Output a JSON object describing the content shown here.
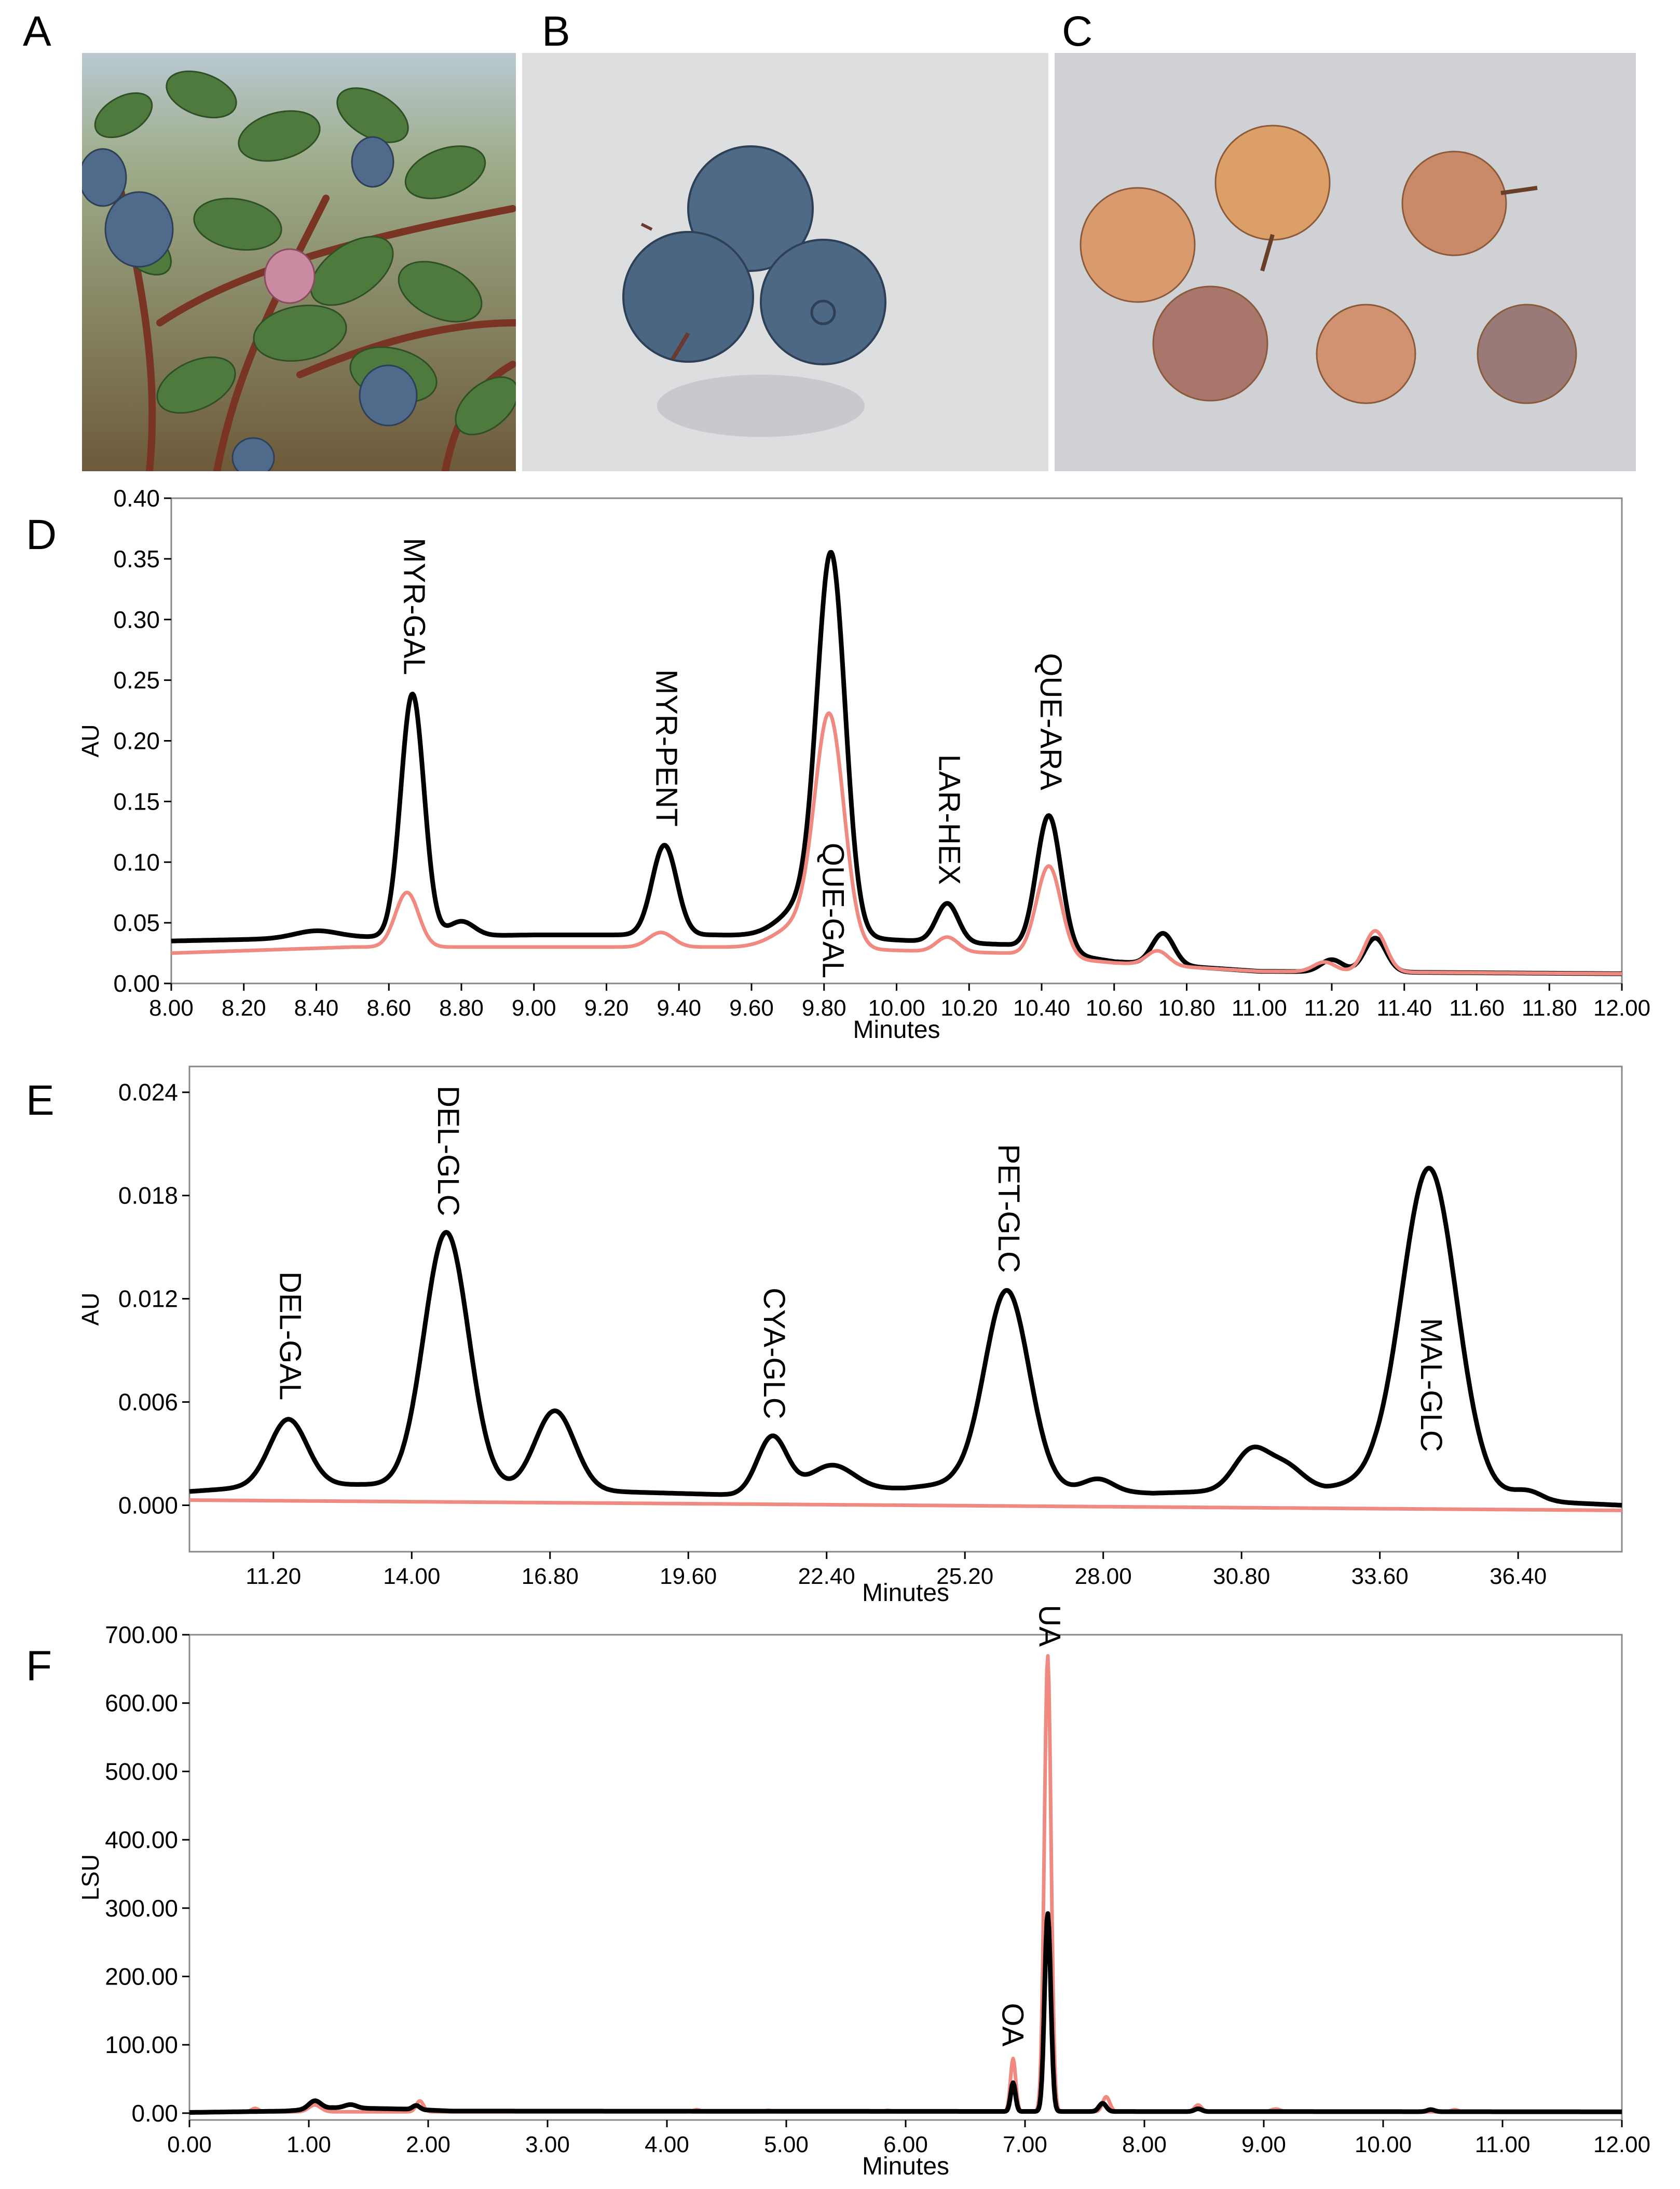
{
  "panels": {
    "a": {
      "letter": "A"
    },
    "b": {
      "letter": "B"
    },
    "c": {
      "letter": "C"
    },
    "d": {
      "letter": "D"
    },
    "e": {
      "letter": "E"
    },
    "f": {
      "letter": "F"
    }
  },
  "colors": {
    "black_trace": "#000000",
    "pink_trace": "#f08a80",
    "frame": "#888888",
    "leaf": "#4f7a3e",
    "berry_blue": "#4f6a8a",
    "berry_white": "#d99a6e"
  },
  "chart_data": [
    {
      "id": "D",
      "type": "line",
      "xlabel": "Minutes",
      "ylabel": "AU",
      "xlim": [
        8.0,
        12.0
      ],
      "ylim": [
        0.0,
        0.4
      ],
      "xticks": [
        "8.00",
        "8.20",
        "8.40",
        "8.60",
        "8.80",
        "9.00",
        "9.20",
        "9.40",
        "9.60",
        "9.80",
        "10.00",
        "10.20",
        "10.40",
        "10.60",
        "10.80",
        "11.00",
        "11.20",
        "11.40",
        "11.60",
        "11.80",
        "12.00"
      ],
      "xtick_values": [
        8.0,
        8.2,
        8.4,
        8.6,
        8.8,
        9.0,
        9.2,
        9.4,
        9.6,
        9.8,
        10.0,
        10.2,
        10.4,
        10.6,
        10.8,
        11.0,
        11.2,
        11.4,
        11.6,
        11.8,
        12.0
      ],
      "yticks": [
        "0.00",
        "0.05",
        "0.10",
        "0.15",
        "0.20",
        "0.25",
        "0.30",
        "0.35",
        "0.40"
      ],
      "ytick_values": [
        0.0,
        0.05,
        0.1,
        0.15,
        0.2,
        0.25,
        0.3,
        0.35,
        0.4
      ],
      "series": [
        {
          "name": "black",
          "color": "#000000",
          "baseline": [
            [
              8.0,
              0.035
            ],
            [
              8.5,
              0.038
            ],
            [
              9.0,
              0.04
            ],
            [
              9.5,
              0.04
            ],
            [
              9.9,
              0.037
            ],
            [
              10.3,
              0.032
            ],
            [
              10.6,
              0.018
            ],
            [
              11.0,
              0.01
            ],
            [
              12.0,
              0.008
            ]
          ],
          "peaks": [
            [
              8.4,
              0.006,
              0.06
            ],
            [
              8.665,
              0.2,
              0.032
            ],
            [
              8.8,
              0.012,
              0.035
            ],
            [
              9.36,
              0.074,
              0.034
            ],
            [
              9.82,
              0.297,
              0.038
            ],
            [
              9.76,
              0.03,
              0.07
            ],
            [
              10.14,
              0.032,
              0.03
            ],
            [
              10.42,
              0.112,
              0.034
            ],
            [
              10.735,
              0.026,
              0.03
            ],
            [
              11.2,
              0.01,
              0.03
            ],
            [
              11.32,
              0.028,
              0.03
            ]
          ]
        },
        {
          "name": "pink",
          "color": "#f08a80",
          "baseline": [
            [
              8.0,
              0.025
            ],
            [
              8.5,
              0.03
            ],
            [
              9.0,
              0.03
            ],
            [
              9.5,
              0.03
            ],
            [
              9.9,
              0.028
            ],
            [
              10.3,
              0.025
            ],
            [
              10.6,
              0.017
            ],
            [
              11.0,
              0.01
            ],
            [
              12.0,
              0.008
            ]
          ],
          "peaks": [
            [
              8.65,
              0.045,
              0.032
            ],
            [
              9.35,
              0.012,
              0.034
            ],
            [
              9.815,
              0.183,
              0.04
            ],
            [
              9.74,
              0.02,
              0.07
            ],
            [
              10.14,
              0.012,
              0.03
            ],
            [
              10.42,
              0.075,
              0.034
            ],
            [
              10.72,
              0.012,
              0.03
            ],
            [
              11.18,
              0.008,
              0.03
            ],
            [
              11.32,
              0.034,
              0.03
            ]
          ]
        }
      ],
      "annotations": [
        {
          "label": "MYR-GAL",
          "x": 8.665,
          "y": 0.25
        },
        {
          "label": "MYR-PENT",
          "x": 9.36,
          "y": 0.125
        },
        {
          "label": "QUE-GAL",
          "x": 9.82,
          "y": 0.0
        },
        {
          "label": "LAR-HEX",
          "x": 10.14,
          "y": 0.077
        },
        {
          "label": "QUE-ARA",
          "x": 10.42,
          "y": 0.155
        }
      ]
    },
    {
      "id": "E",
      "type": "line",
      "xlabel": "Minutes",
      "ylabel": "AU",
      "xlim": [
        9.5,
        38.5
      ],
      "ylim": [
        -0.0027,
        0.0255
      ],
      "xticks": [
        "11.20",
        "14.00",
        "16.80",
        "19.60",
        "22.40",
        "25.20",
        "28.00",
        "30.80",
        "33.60",
        "36.40"
      ],
      "xtick_values": [
        11.2,
        14.0,
        16.8,
        19.6,
        22.4,
        25.2,
        28.0,
        30.8,
        33.6,
        36.4
      ],
      "yticks": [
        "0.000",
        "0.006",
        "0.012",
        "0.018",
        "0.024"
      ],
      "ytick_values": [
        0.0,
        0.006,
        0.012,
        0.018,
        0.024
      ],
      "series": [
        {
          "name": "black",
          "color": "#000000",
          "baseline": [
            [
              9.5,
              0.0008
            ],
            [
              11.5,
              0.0012
            ],
            [
              13.0,
              0.0012
            ],
            [
              18.0,
              0.0008
            ],
            [
              20.5,
              0.0006
            ],
            [
              24.0,
              0.001
            ],
            [
              25.0,
              0.0013
            ],
            [
              26.5,
              0.001
            ],
            [
              29.0,
              0.0007
            ],
            [
              32.5,
              0.001
            ],
            [
              33.5,
              0.0015
            ],
            [
              37.0,
              0.0002
            ],
            [
              38.5,
              0.0
            ]
          ],
          "peaks": [
            [
              11.5,
              0.0038,
              0.38
            ],
            [
              14.7,
              0.0148,
              0.45
            ],
            [
              16.9,
              0.0046,
              0.4
            ],
            [
              21.3,
              0.0033,
              0.3
            ],
            [
              22.5,
              0.0015,
              0.45
            ],
            [
              26.05,
              0.0114,
              0.45
            ],
            [
              27.9,
              0.0007,
              0.3
            ],
            [
              31.0,
              0.0023,
              0.35
            ],
            [
              31.7,
              0.0013,
              0.35
            ],
            [
              34.6,
              0.0185,
              0.55
            ],
            [
              36.6,
              0.0005,
              0.3
            ]
          ]
        },
        {
          "name": "pink",
          "color": "#f08a80",
          "baseline": [
            [
              9.5,
              0.0003
            ],
            [
              38.5,
              -0.0003
            ]
          ],
          "peaks": []
        }
      ],
      "annotations": [
        {
          "label": "DEL-GAL",
          "x": 11.5,
          "y": 0.0058
        },
        {
          "label": "DEL-GLC",
          "x": 14.7,
          "y": 0.0165
        },
        {
          "label": "CYA-GLC",
          "x": 21.3,
          "y": 0.0047
        },
        {
          "label": "PET-GLC",
          "x": 26.05,
          "y": 0.0132
        },
        {
          "label": "MAL-GLC",
          "x": 34.6,
          "y": 0.0028
        }
      ]
    },
    {
      "id": "F",
      "type": "line",
      "xlabel": "Minutes",
      "ylabel": "LSU",
      "xlim": [
        0.0,
        12.0
      ],
      "ylim": [
        -10,
        700
      ],
      "xticks": [
        "0.00",
        "1.00",
        "2.00",
        "3.00",
        "4.00",
        "5.00",
        "6.00",
        "7.00",
        "8.00",
        "9.00",
        "10.00",
        "11.00",
        "12.00"
      ],
      "xtick_values": [
        0,
        1,
        2,
        3,
        4,
        5,
        6,
        7,
        8,
        9,
        10,
        11,
        12
      ],
      "yticks": [
        "0.00",
        "100.00",
        "200.00",
        "300.00",
        "400.00",
        "500.00",
        "600.00",
        "700.00"
      ],
      "ytick_values": [
        0,
        100,
        200,
        300,
        400,
        500,
        600,
        700
      ],
      "series": [
        {
          "name": "pink",
          "color": "#f08a80",
          "baseline": [
            [
              0,
              2
            ],
            [
              12,
              2
            ]
          ],
          "peaks": [
            [
              0.55,
              5,
              0.03
            ],
            [
              1.05,
              10,
              0.05
            ],
            [
              1.93,
              16,
              0.03
            ],
            [
              4.25,
              3,
              0.03
            ],
            [
              4.85,
              2,
              0.03
            ],
            [
              5.85,
              2,
              0.03
            ],
            [
              6.9,
              78,
              0.022
            ],
            [
              7.19,
              668,
              0.028
            ],
            [
              7.68,
              22,
              0.03
            ],
            [
              8.45,
              10,
              0.03
            ],
            [
              9.1,
              4,
              0.04
            ],
            [
              10.6,
              3,
              0.03
            ]
          ]
        },
        {
          "name": "black",
          "color": "#000000",
          "baseline": [
            [
              0,
              1
            ],
            [
              0.8,
              3
            ],
            [
              1.2,
              8
            ],
            [
              1.8,
              6
            ],
            [
              2.2,
              3
            ],
            [
              12,
              2
            ]
          ],
          "peaks": [
            [
              1.05,
              12,
              0.05
            ],
            [
              1.35,
              5,
              0.05
            ],
            [
              1.9,
              6,
              0.03
            ],
            [
              6.9,
              42,
              0.02
            ],
            [
              7.19,
              290,
              0.026
            ],
            [
              7.65,
              12,
              0.03
            ],
            [
              8.45,
              4,
              0.03
            ],
            [
              10.4,
              3,
              0.03
            ]
          ]
        }
      ],
      "annotations": [
        {
          "label": "OA",
          "x": 6.88,
          "y": 90
        },
        {
          "label": "UA",
          "x": 7.19,
          "y": 675
        }
      ]
    }
  ]
}
